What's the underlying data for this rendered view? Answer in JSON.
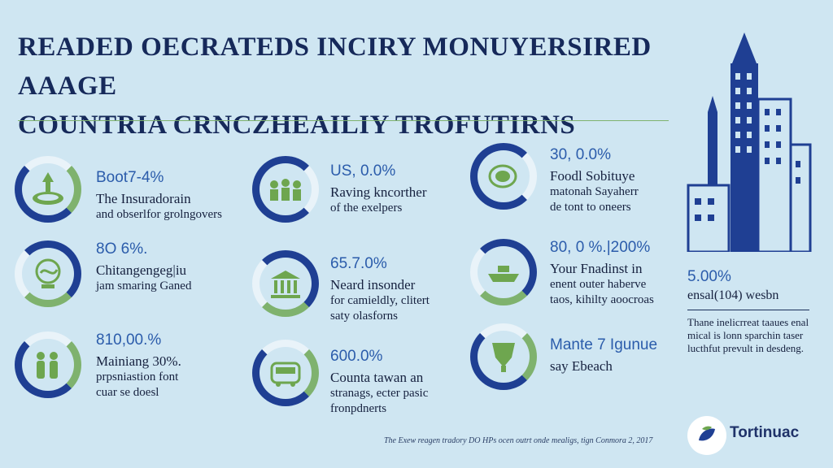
{
  "heading": {
    "line1": "READED OECRATEDS INCIRY MONUYERSIRED AAAGE",
    "line2": "COUNTRIA CRNCZHEAILIY TROFUTIRNS"
  },
  "items": [
    {
      "stat": "Boot7-4%",
      "line1": "The Insuradorain",
      "line2": "and obserlfor grolngovers",
      "line3": ""
    },
    {
      "stat": "8O 6%.",
      "line1": "Chitangengeg|iu",
      "line2": "jam smaring Ganed",
      "line3": ""
    },
    {
      "stat": "810,00.%",
      "line1": "Mainiang 30%.",
      "line2": "prpsniastion font",
      "line3": "cuar se doesl"
    },
    {
      "stat": "US, 0.0%",
      "line1": "Raving kncorther",
      "line2": "of the exelpers",
      "line3": ""
    },
    {
      "stat": "65.7.0%",
      "line1": "Neard insonder",
      "line2": "for camieldly, clitert",
      "line3": "saty olasforns"
    },
    {
      "stat": "600.0%",
      "line1": "Counta tawan an",
      "line2": "stranags, ecter pasic",
      "line3": "fronpdnerts"
    },
    {
      "stat": "30, 0.0%",
      "line1": "Foodl Sobituye",
      "line2": "matonah Sayaherr",
      "line3": "de tont to oneers"
    },
    {
      "stat": "80, 0 %.|200%",
      "line1": "Your Fnadinst in",
      "line2": "enent outer haberve",
      "line3": "taos, kihilty aoocroas"
    },
    {
      "stat": "Mante 7 Igunue",
      "line1": "say Ebeach",
      "line2": "",
      "line3": ""
    }
  ],
  "sidebar": {
    "stat": "5.00%",
    "subtitle": "ensal(104) wesbn",
    "description": "Thane inelicrreat taaues enal mical is lonn sparchin taser lucthfut prevult in desdeng."
  },
  "footer": "The Exew reagen tradory DO HPs ocen outrt onde mealigs, tign Conmora 2, 2017",
  "logo": {
    "name": "Tortinuac"
  },
  "colors": {
    "background": "#cfe6f2",
    "navy": "#1f3f93",
    "green": "#7fb26e",
    "stat_blue": "#2b5cab"
  }
}
